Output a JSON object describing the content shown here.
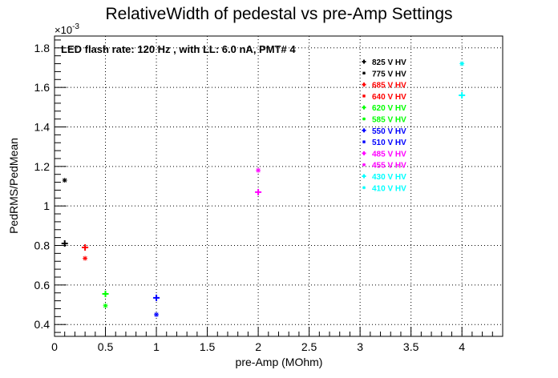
{
  "chart_data": {
    "type": "scatter",
    "title": "RelativeWidth of pedestal vs pre-Amp Settings",
    "annotation": "LED flash rate: 120 Hz , with LL: 6.0 nA, PMT# 4",
    "xlabel": "pre-Amp (MOhm)",
    "ylabel": "PedRMS/PedMean",
    "y_multiplier": "×10",
    "y_multiplier_exponent": "-3",
    "xlim": [
      0,
      4.4
    ],
    "ylim": [
      0.34,
      1.86
    ],
    "x_ticks": [
      "0",
      "0.5",
      "1",
      "1.5",
      "2",
      "2.5",
      "3",
      "3.5",
      "4"
    ],
    "y_ticks": [
      "0.4",
      "0.6",
      "0.8",
      "1",
      "1.2",
      "1.4",
      "1.6",
      "1.8"
    ],
    "grid": true,
    "legend_position": "top-right",
    "series": [
      {
        "name": "825 V HV",
        "color": "#000000",
        "marker": "plus",
        "points": [
          [
            0.1,
            0.81
          ]
        ]
      },
      {
        "name": "775 V HV",
        "color": "#000000",
        "marker": "star",
        "points": [
          [
            0.1,
            1.13
          ]
        ]
      },
      {
        "name": "685 V HV",
        "color": "#ff0000",
        "marker": "plus",
        "points": [
          [
            0.3,
            0.79
          ]
        ]
      },
      {
        "name": "640 V HV",
        "color": "#ff0000",
        "marker": "star",
        "points": [
          [
            0.3,
            0.735
          ]
        ]
      },
      {
        "name": "620 V HV",
        "color": "#00ff00",
        "marker": "plus",
        "points": [
          [
            0.5,
            0.555
          ]
        ]
      },
      {
        "name": "585 V HV",
        "color": "#00ff00",
        "marker": "star",
        "points": [
          [
            0.5,
            0.495
          ]
        ]
      },
      {
        "name": "550 V HV",
        "color": "#0000ff",
        "marker": "plus",
        "points": [
          [
            1.0,
            0.535
          ]
        ]
      },
      {
        "name": "510 V HV",
        "color": "#0000ff",
        "marker": "star",
        "points": [
          [
            1.0,
            0.45
          ]
        ]
      },
      {
        "name": "485 V HV",
        "color": "#ff00ff",
        "marker": "plus",
        "points": [
          [
            2.0,
            1.07
          ]
        ]
      },
      {
        "name": "455 V HV",
        "color": "#ff00ff",
        "marker": "star",
        "points": [
          [
            2.0,
            1.18
          ]
        ]
      },
      {
        "name": "430 V HV",
        "color": "#00ffff",
        "marker": "plus",
        "points": [
          [
            4.0,
            1.56
          ]
        ]
      },
      {
        "name": "410 V HV",
        "color": "#00ffff",
        "marker": "star",
        "points": [
          [
            4.0,
            1.72
          ]
        ]
      }
    ]
  }
}
